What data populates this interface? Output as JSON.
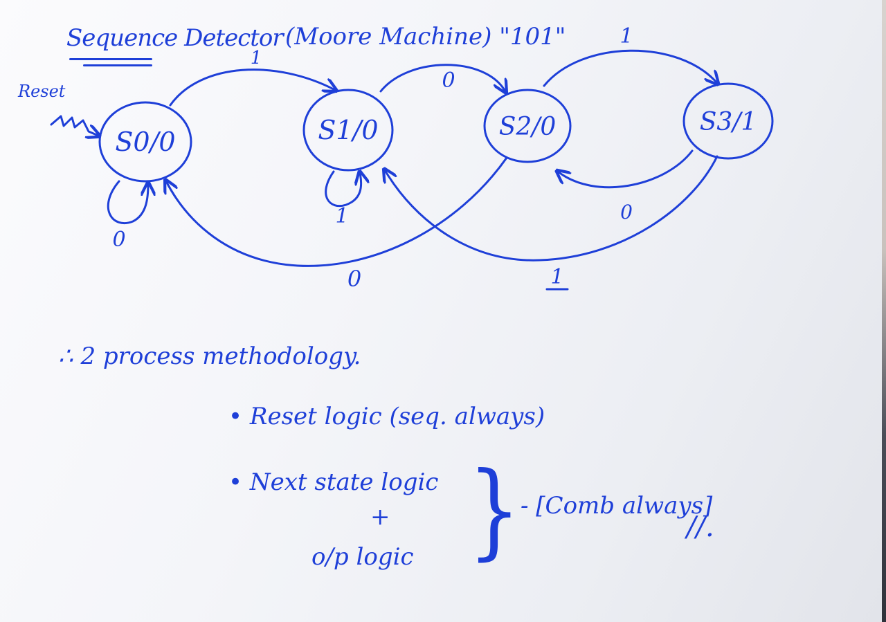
{
  "title": {
    "main": "Sequence Detector",
    "suffix": "(Moore Machine) \"101\""
  },
  "reset_label": "Reset",
  "states": [
    {
      "label": "S0/0"
    },
    {
      "label": "S1/0"
    },
    {
      "label": "S2/0"
    },
    {
      "label": "S3/1"
    }
  ],
  "transitions": {
    "s0_s0": "0",
    "s0_s1": "1",
    "s1_s1": "1",
    "s1_s2": "0",
    "s2_s0": "0",
    "s2_s3": "1",
    "s3_s2": "0",
    "s3_s1": "1"
  },
  "notes": {
    "header": "∴ 2 process methodology.",
    "items": [
      "• Reset logic (seq. always)",
      "• Next state logic"
    ],
    "plus": "+",
    "output_logic": "o/p logic",
    "brace": "}",
    "group_label": "- [Comb always]",
    "end_mark": "//."
  },
  "colors": {
    "ink": "#1e3fd8",
    "paper": "#f4f5f9"
  }
}
